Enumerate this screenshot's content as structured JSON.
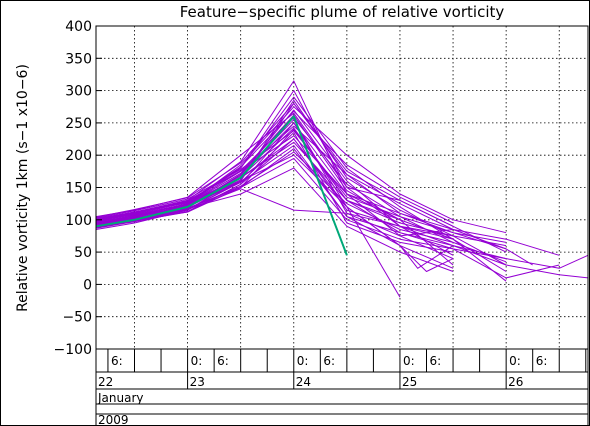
{
  "chart_data": {
    "type": "line",
    "title": "Feature−specific plume of relative vorticity",
    "ylabel": "Relative vorticity 1km (s−1 x10−6)",
    "xlabel": "",
    "ylim": [
      -100,
      400
    ],
    "yticks": [
      -100,
      -50,
      0,
      50,
      100,
      150,
      200,
      250,
      300,
      350,
      400
    ],
    "ytick_labels": [
      "−100",
      "−50",
      "0",
      "50",
      "100",
      "150",
      "200",
      "250",
      "300",
      "350",
      "400"
    ],
    "x_unit": "hours after 22 Jan 2009 00:00",
    "x_range_hours": [
      3.3,
      114.5
    ],
    "hour_labels": [
      {
        "hour": 6,
        "text": "6:"
      },
      {
        "hour": 24,
        "text": "0:"
      },
      {
        "hour": 30,
        "text": "6:"
      },
      {
        "hour": 48,
        "text": "0:"
      },
      {
        "hour": 54,
        "text": "6:"
      },
      {
        "hour": 72,
        "text": "0:"
      },
      {
        "hour": 78,
        "text": "6:"
      },
      {
        "hour": 96,
        "text": "0:"
      },
      {
        "hour": 102,
        "text": "6:"
      }
    ],
    "day_labels": [
      {
        "hour": 3.3,
        "text": "22"
      },
      {
        "hour": 24,
        "text": "23"
      },
      {
        "hour": 48,
        "text": "24"
      },
      {
        "hour": 72,
        "text": "25"
      },
      {
        "hour": 96,
        "text": "26"
      }
    ],
    "month": "January",
    "year": "2009",
    "grid": true,
    "series": [
      {
        "color": "#00a878",
        "x": [
          3.3,
          12,
          24,
          36,
          48,
          60
        ],
        "y": [
          90,
          100,
          120,
          165,
          260,
          45
        ]
      },
      {
        "color": "#9400d3",
        "x": [
          3.3,
          12,
          24,
          36,
          48,
          60,
          72,
          84,
          96
        ],
        "y": [
          95,
          105,
          125,
          180,
          300,
          150,
          90,
          60,
          40
        ]
      },
      {
        "color": "#9400d3",
        "x": [
          3.3,
          12,
          24,
          36,
          48,
          60,
          72,
          84
        ],
        "y": [
          100,
          110,
          130,
          190,
          315,
          140,
          100,
          70
        ]
      },
      {
        "color": "#9400d3",
        "x": [
          3.3,
          12,
          24,
          36,
          48,
          60,
          72,
          84,
          96,
          102
        ],
        "y": [
          85,
          95,
          115,
          160,
          280,
          170,
          110,
          80,
          55,
          30
        ]
      },
      {
        "color": "#9400d3",
        "x": [
          3.3,
          12,
          24,
          36,
          48,
          60,
          72,
          84
        ],
        "y": [
          92,
          102,
          120,
          170,
          270,
          160,
          90,
          45
        ]
      },
      {
        "color": "#9400d3",
        "x": [
          3.3,
          12,
          24,
          36,
          48,
          60,
          72,
          84,
          96
        ],
        "y": [
          100,
          108,
          118,
          150,
          240,
          130,
          80,
          60,
          30
        ]
      },
      {
        "color": "#9400d3",
        "x": [
          3.3,
          12,
          24,
          36,
          48,
          60,
          72,
          78,
          84
        ],
        "y": [
          88,
          100,
          112,
          155,
          250,
          120,
          60,
          20,
          40
        ]
      },
      {
        "color": "#9400d3",
        "x": [
          3.3,
          12,
          24,
          36,
          48,
          60,
          72,
          84,
          96
        ],
        "y": [
          105,
          115,
          135,
          200,
          265,
          150,
          130,
          90,
          50
        ]
      },
      {
        "color": "#9400d3",
        "x": [
          3.3,
          12,
          24,
          36,
          48,
          60,
          72,
          84,
          96,
          108
        ],
        "y": [
          95,
          100,
          125,
          175,
          230,
          140,
          110,
          85,
          70,
          45
        ]
      },
      {
        "color": "#9400d3",
        "x": [
          3.3,
          12,
          24,
          36,
          48,
          60,
          72,
          84,
          96,
          108,
          114.5
        ],
        "y": [
          90,
          98,
          115,
          165,
          220,
          130,
          95,
          75,
          30,
          15,
          10
        ]
      },
      {
        "color": "#9400d3",
        "x": [
          3.3,
          12,
          24,
          36,
          48,
          60,
          72,
          84,
          96
        ],
        "y": [
          100,
          110,
          128,
          180,
          290,
          180,
          120,
          70,
          20
        ]
      },
      {
        "color": "#9400d3",
        "x": [
          3.3,
          12,
          24,
          36,
          48,
          60,
          72,
          84
        ],
        "y": [
          92,
          105,
          120,
          170,
          255,
          110,
          75,
          85
        ]
      },
      {
        "color": "#9400d3",
        "x": [
          3.3,
          12,
          24,
          36,
          48,
          60,
          72,
          84,
          96,
          108,
          114.5
        ],
        "y": [
          88,
          98,
          112,
          150,
          210,
          105,
          80,
          55,
          40,
          25,
          45
        ]
      },
      {
        "color": "#9400d3",
        "x": [
          3.3,
          12,
          24,
          36,
          48,
          60,
          72,
          84,
          96
        ],
        "y": [
          98,
          108,
          125,
          185,
          275,
          200,
          140,
          100,
          80
        ]
      },
      {
        "color": "#9400d3",
        "x": [
          3.3,
          12,
          24,
          36,
          48,
          60,
          72,
          84
        ],
        "y": [
          90,
          100,
          118,
          140,
          180,
          90,
          50,
          20
        ]
      },
      {
        "color": "#9400d3",
        "x": [
          3.3,
          12,
          24,
          36,
          48,
          60,
          72,
          76,
          84
        ],
        "y": [
          95,
          104,
          122,
          160,
          200,
          120,
          60,
          25,
          60
        ]
      },
      {
        "color": "#9400d3",
        "x": [
          3.3,
          12,
          24,
          36,
          48,
          60,
          72,
          84,
          96
        ],
        "y": [
          100,
          112,
          130,
          175,
          245,
          170,
          125,
          85,
          55
        ]
      },
      {
        "color": "#9400d3",
        "x": [
          3.3,
          12,
          24,
          36,
          48,
          60,
          72,
          84,
          96
        ],
        "y": [
          102,
          112,
          126,
          165,
          225,
          115,
          90,
          75,
          60
        ]
      },
      {
        "color": "#9400d3",
        "x": [
          3.3,
          12,
          24,
          36,
          48,
          60,
          72,
          84,
          96,
          108
        ],
        "y": [
          94,
          103,
          118,
          150,
          195,
          100,
          70,
          55,
          10,
          30
        ]
      },
      {
        "color": "#9400d3",
        "x": [
          3.3,
          12,
          24,
          36,
          48,
          60,
          72,
          84
        ],
        "y": [
          89,
          99,
          116,
          148,
          115,
          110,
          90,
          70
        ]
      },
      {
        "color": "#9400d3",
        "x": [
          3.3,
          12,
          24,
          36,
          48,
          60,
          72,
          84,
          96
        ],
        "y": [
          97,
          106,
          124,
          172,
          262,
          145,
          100,
          70,
          5
        ]
      },
      {
        "color": "#9400d3",
        "x": [
          3.3,
          12,
          24,
          36,
          48,
          60,
          72,
          84
        ],
        "y": [
          103,
          114,
          132,
          178,
          238,
          135,
          105,
          65
        ]
      },
      {
        "color": "#9400d3",
        "x": [
          3.3,
          12,
          24,
          36,
          48,
          60,
          72,
          84
        ],
        "y": [
          91,
          101,
          119,
          162,
          285,
          165,
          115,
          75
        ]
      },
      {
        "color": "#9400d3",
        "x": [
          3.3,
          12,
          24,
          36,
          48,
          60,
          72,
          84
        ],
        "y": [
          98,
          104,
          121,
          158,
          235,
          95,
          65,
          50
        ]
      },
      {
        "color": "#9400d3",
        "x": [
          3.3,
          12,
          24,
          36,
          48,
          60,
          72,
          84,
          96
        ],
        "y": [
          93,
          102,
          117,
          152,
          205,
          125,
          85,
          65,
          35
        ]
      },
      {
        "color": "#9400d3",
        "x": [
          3.3,
          12,
          24,
          36,
          48,
          60,
          72,
          84
        ],
        "y": [
          99,
          109,
          127,
          182,
          268,
          185,
          135,
          95
        ]
      },
      {
        "color": "#9400d3",
        "x": [
          3.3,
          12,
          24,
          36,
          48,
          60,
          72,
          84
        ],
        "y": [
          96,
          107,
          123,
          168,
          250,
          140,
          75,
          40
        ]
      },
      {
        "color": "#9400d3",
        "x": [
          3.3,
          12,
          24,
          36,
          48,
          60,
          72,
          84,
          96
        ],
        "y": [
          101,
          111,
          129,
          176,
          258,
          155,
          105,
          80,
          65
        ]
      },
      {
        "color": "#9400d3",
        "x": [
          3.3,
          12,
          24,
          36,
          48,
          60,
          72
        ],
        "y": [
          87,
          97,
          113,
          155,
          225,
          120,
          -20
        ]
      },
      {
        "color": "#9400d3",
        "x": [
          3.3,
          12,
          24,
          36,
          48,
          60,
          72,
          84
        ],
        "y": [
          94,
          105,
          122,
          166,
          242,
          130,
          100,
          30
        ]
      },
      {
        "color": "#9400d3",
        "x": [
          3.3,
          12,
          24,
          36,
          48,
          60,
          72,
          84
        ],
        "y": [
          92,
          100,
          116,
          158,
          215,
          105,
          60,
          25
        ]
      },
      {
        "color": "#9400d3",
        "x": [
          3.3,
          12,
          24,
          36,
          48,
          60,
          72,
          84
        ],
        "y": [
          104,
          116,
          134,
          188,
          280,
          175,
          130,
          90
        ]
      }
    ]
  }
}
